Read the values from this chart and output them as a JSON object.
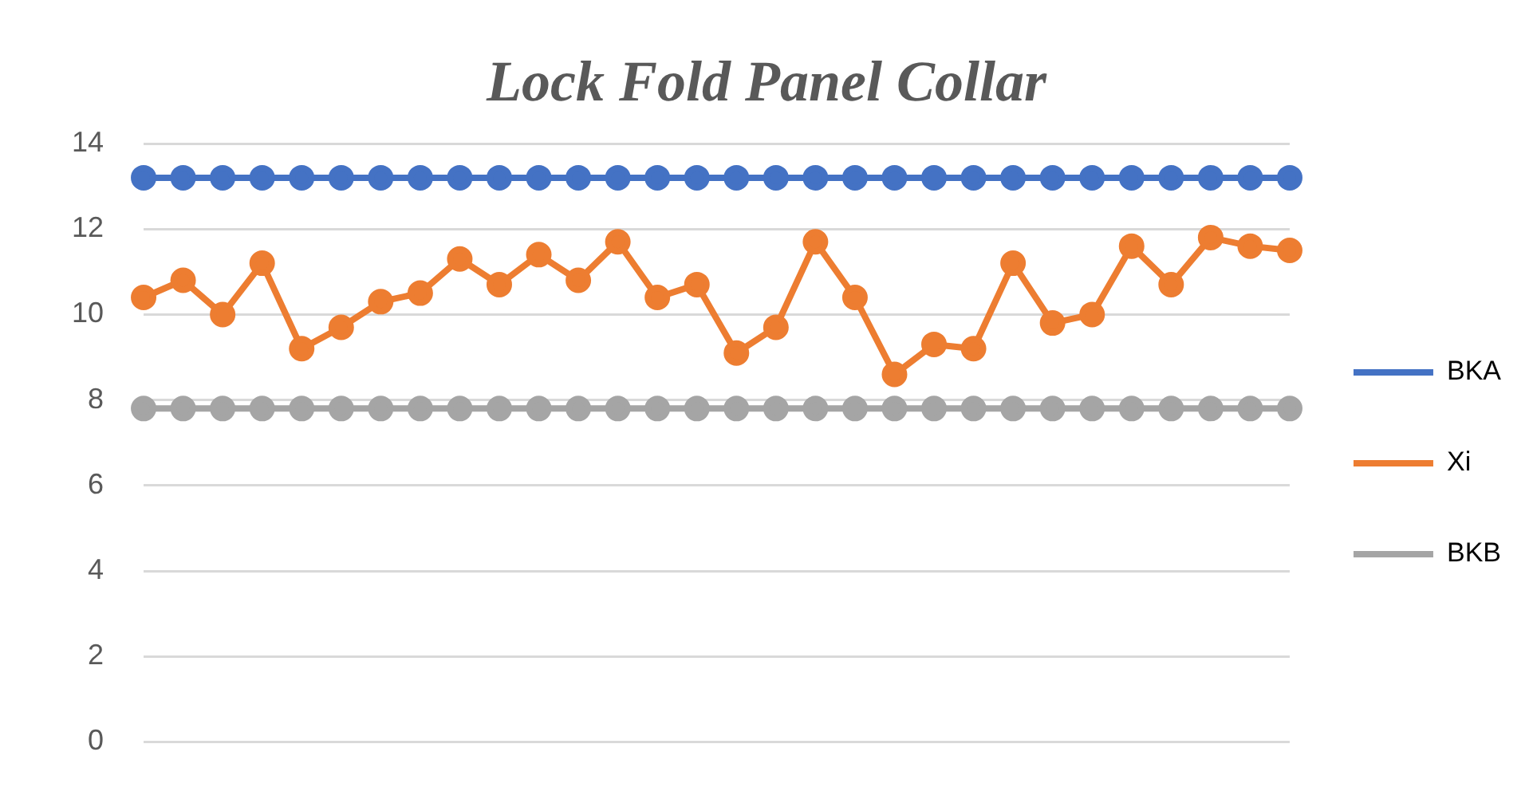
{
  "chart_data": {
    "type": "line",
    "title": "Lock Fold Panel Collar",
    "categories": [
      null,
      null,
      null,
      null,
      null,
      null,
      null,
      null,
      null,
      null,
      null,
      null,
      null,
      null,
      null,
      null,
      null,
      null,
      null,
      null,
      null,
      null,
      null,
      null,
      null,
      null,
      null,
      null,
      null,
      null
    ],
    "series": [
      {
        "name": "BKA",
        "color": "#4472c4",
        "values": [
          13.2,
          13.2,
          13.2,
          13.2,
          13.2,
          13.2,
          13.2,
          13.2,
          13.2,
          13.2,
          13.2,
          13.2,
          13.2,
          13.2,
          13.2,
          13.2,
          13.2,
          13.2,
          13.2,
          13.2,
          13.2,
          13.2,
          13.2,
          13.2,
          13.2,
          13.2,
          13.2,
          13.2,
          13.2,
          13.2
        ]
      },
      {
        "name": "Xi",
        "color": "#ed7d31",
        "values": [
          10.4,
          10.8,
          10.0,
          11.2,
          9.2,
          9.7,
          10.3,
          10.5,
          11.3,
          10.7,
          11.4,
          10.8,
          11.7,
          10.4,
          10.7,
          9.1,
          9.7,
          11.7,
          10.4,
          8.6,
          9.3,
          9.2,
          11.2,
          9.8,
          10.0,
          11.6,
          10.7,
          11.8,
          11.6,
          11.5
        ]
      },
      {
        "name": "BKB",
        "color": "#a5a5a5",
        "values": [
          7.8,
          7.8,
          7.8,
          7.8,
          7.8,
          7.8,
          7.8,
          7.8,
          7.8,
          7.8,
          7.8,
          7.8,
          7.8,
          7.8,
          7.8,
          7.8,
          7.8,
          7.8,
          7.8,
          7.8,
          7.8,
          7.8,
          7.8,
          7.8,
          7.8,
          7.8,
          7.8,
          7.8,
          7.8,
          7.8
        ]
      }
    ],
    "ylim": [
      0,
      14
    ],
    "yticks": [
      0,
      2,
      4,
      6,
      8,
      10,
      12,
      14
    ],
    "grid": "y",
    "legend": "right",
    "marker": "circle",
    "line_style": "solid"
  }
}
